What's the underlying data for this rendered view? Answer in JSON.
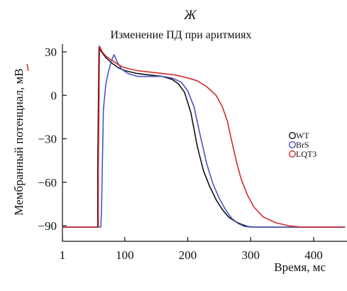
{
  "panel_label": "Ж",
  "chart_data": {
    "type": "line",
    "title": "Изменение ПД при аритмиях",
    "xlabel": "Время, мс",
    "ylabel": "Мембранный потенциал, мВ",
    "xlim": [
      1,
      450
    ],
    "ylim": [
      -97,
      35
    ],
    "x_ticks": [
      1,
      100,
      200,
      300,
      400
    ],
    "x_tick_labels": [
      "1",
      "100",
      "200",
      "300",
      "400"
    ],
    "y_ticks": [
      -90,
      -60,
      -30,
      0,
      30
    ],
    "y_tick_labels": [
      "−90",
      "−60",
      "−30",
      "0",
      "30"
    ],
    "grid": false,
    "legend_position": "right",
    "series": [
      {
        "name": "WT",
        "color": "#111111",
        "x": [
          1,
          57,
          57,
          59,
          60,
          63,
          70,
          80,
          90,
          100,
          120,
          140,
          160,
          175,
          185,
          195,
          205,
          215,
          225,
          235,
          245,
          255,
          265,
          275,
          285,
          295,
          305,
          320,
          350,
          450
        ],
        "y": [
          -91,
          -91,
          -50,
          33,
          32,
          30,
          26,
          22,
          19,
          17,
          15,
          14,
          13,
          11,
          8,
          2,
          -12,
          -35,
          -52,
          -63,
          -72,
          -79,
          -84,
          -87,
          -89,
          -90.5,
          -91,
          -91,
          -91,
          -91
        ]
      },
      {
        "name": "BrS",
        "color": "#4a55c0",
        "x": [
          1,
          62,
          63,
          66,
          70,
          75,
          80,
          83,
          88,
          95,
          105,
          120,
          140,
          160,
          175,
          190,
          200,
          210,
          220,
          230,
          240,
          250,
          260,
          270,
          280,
          290,
          300,
          320,
          350,
          450
        ],
        "y": [
          -91,
          -91,
          -80,
          -10,
          8,
          18,
          25,
          28,
          23,
          18,
          15,
          13,
          13,
          13,
          12,
          9,
          3,
          -8,
          -28,
          -47,
          -61,
          -71,
          -79,
          -85,
          -88.5,
          -90.5,
          -91,
          -91,
          -91,
          -91
        ]
      },
      {
        "name": "LQT3",
        "color": "#d42a2a",
        "x": [
          1,
          58,
          58,
          60,
          61,
          64,
          70,
          80,
          90,
          100,
          120,
          140,
          160,
          180,
          200,
          215,
          230,
          245,
          255,
          263,
          270,
          278,
          285,
          295,
          305,
          320,
          340,
          360,
          380,
          400,
          450
        ],
        "y": [
          -91,
          -91,
          -50,
          34,
          33,
          30,
          27,
          24,
          21,
          19,
          17,
          16,
          15,
          14,
          12,
          10,
          6,
          0,
          -8,
          -18,
          -32,
          -47,
          -58,
          -69,
          -77,
          -84,
          -88,
          -90,
          -91,
          -91,
          -91
        ]
      }
    ]
  }
}
